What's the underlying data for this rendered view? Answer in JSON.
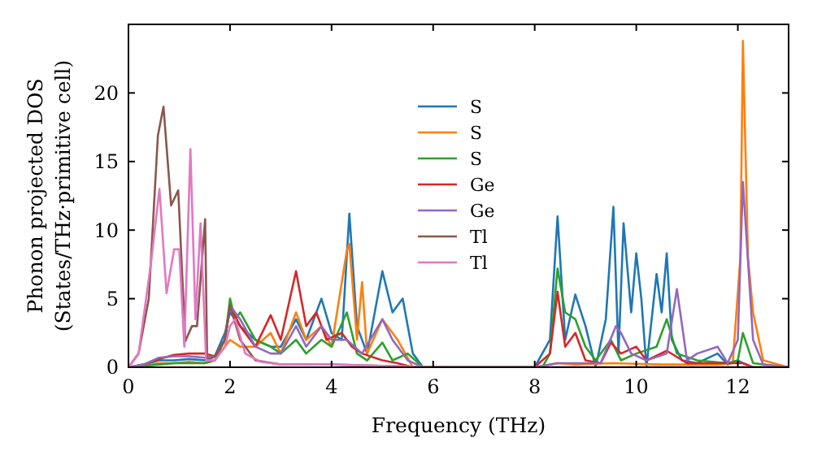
{
  "chart_data": {
    "type": "line",
    "xlabel": "Frequency (THz)",
    "ylabel": "Phonon projected DOS\n(States/THz·primitive cell)",
    "xlim": [
      0,
      13
    ],
    "ylim": [
      0,
      25
    ],
    "xticks": [
      0,
      2,
      4,
      6,
      8,
      10,
      12
    ],
    "yticks": [
      0,
      5,
      10,
      15,
      20
    ],
    "grid": false,
    "legend": "center",
    "marker": "none",
    "line_style": "solid",
    "series": [
      {
        "name": "S",
        "color": "#1f77b4",
        "x": [
          0,
          0.3,
          0.6,
          0.9,
          1.2,
          1.5,
          1.7,
          1.9,
          2.0,
          2.2,
          2.5,
          2.8,
          3.0,
          3.3,
          3.5,
          3.8,
          4.0,
          4.2,
          4.35,
          4.5,
          4.7,
          5.0,
          5.2,
          5.4,
          5.6,
          5.8,
          8.0,
          8.3,
          8.45,
          8.6,
          8.8,
          9.0,
          9.2,
          9.4,
          9.55,
          9.65,
          9.75,
          9.9,
          10.0,
          10.1,
          10.2,
          10.4,
          10.5,
          10.6,
          10.7,
          10.9,
          11.2,
          11.6,
          11.8,
          12.0,
          12.1,
          12.3,
          13
        ],
        "values": [
          0,
          0.2,
          0.5,
          0.5,
          0.6,
          0.5,
          0.8,
          2.5,
          4,
          3,
          2,
          1.5,
          1.5,
          3.5,
          2,
          5,
          2.5,
          2,
          11.2,
          3,
          1,
          7,
          4,
          5,
          1,
          0,
          0,
          2,
          11,
          2,
          5.3,
          3,
          0,
          3.5,
          11.7,
          1,
          10.5,
          4,
          8.3,
          5,
          0,
          6.8,
          4,
          8.3,
          2,
          0.5,
          0.3,
          1,
          0.2,
          0.5,
          0.3,
          0,
          0
        ]
      },
      {
        "name": "S",
        "color": "#ff7f0e",
        "x": [
          0,
          0.3,
          0.6,
          0.9,
          1.2,
          1.5,
          1.7,
          1.9,
          2.0,
          2.2,
          2.5,
          2.8,
          3.0,
          3.3,
          3.5,
          3.8,
          4.0,
          4.3,
          4.35,
          4.5,
          4.6,
          4.7,
          5.0,
          5.3,
          5.6,
          8.0,
          8.45,
          8.8,
          9.5,
          10.5,
          11.6,
          11.9,
          12.05,
          12.1,
          12.2,
          12.3,
          12.5,
          13
        ],
        "values": [
          0,
          0.1,
          0.3,
          0.3,
          0.4,
          0.3,
          0.5,
          1.5,
          2,
          1.5,
          1.5,
          2.5,
          1,
          4,
          2,
          3,
          1.5,
          8.5,
          9,
          2,
          6.2,
          1,
          3.5,
          2,
          0,
          0,
          0.3,
          0.2,
          0.3,
          0.2,
          0.2,
          0.3,
          8,
          23.8,
          8,
          4,
          0.5,
          0
        ]
      },
      {
        "name": "S",
        "color": "#2ca02c",
        "x": [
          0,
          0.3,
          0.6,
          0.9,
          1.2,
          1.5,
          1.7,
          1.9,
          2.0,
          2.1,
          2.2,
          2.5,
          2.8,
          3.0,
          3.3,
          3.5,
          3.8,
          4.0,
          4.3,
          4.5,
          4.7,
          5.0,
          5.2,
          5.5,
          5.8,
          8.15,
          8.3,
          8.45,
          8.6,
          8.8,
          9.0,
          9.2,
          9.5,
          9.7,
          10.0,
          10.4,
          10.6,
          10.8,
          11.2,
          11.8,
          12.0,
          12.1,
          12.3,
          13
        ],
        "values": [
          0,
          0.1,
          0.2,
          0.3,
          0.3,
          0.3,
          0.5,
          2,
          5,
          3.5,
          4,
          2,
          1.5,
          1,
          2,
          1,
          2,
          1.5,
          4,
          1,
          0.5,
          1.8,
          0.5,
          1,
          0,
          0,
          1,
          7.2,
          4,
          3.5,
          1.5,
          0.5,
          2,
          0.5,
          1,
          1.5,
          3.5,
          1,
          0.5,
          0.3,
          0.5,
          2.5,
          0.3,
          0
        ]
      },
      {
        "name": "Ge",
        "color": "#d62728",
        "x": [
          0,
          0.3,
          0.6,
          0.9,
          1.2,
          1.5,
          1.7,
          1.9,
          2.0,
          2.2,
          2.5,
          2.8,
          3.0,
          3.3,
          3.5,
          3.7,
          3.9,
          4.2,
          4.4,
          4.6,
          5.0,
          5.3,
          5.6,
          8.0,
          8.3,
          8.45,
          8.6,
          8.8,
          9.0,
          9.3,
          9.5,
          9.7,
          10.0,
          10.2,
          10.6,
          11.0,
          12.1,
          12.3,
          13
        ],
        "values": [
          0,
          0.2,
          0.6,
          0.9,
          1,
          1,
          0.8,
          2,
          4.5,
          3,
          1.5,
          3.8,
          2,
          7,
          3,
          4,
          2,
          2.5,
          1.5,
          1,
          0.5,
          0.3,
          0,
          0,
          1,
          5.5,
          1.5,
          2.5,
          0.5,
          0.3,
          1.8,
          1,
          1.5,
          0.5,
          1.2,
          0.3,
          0.3,
          0,
          0
        ]
      },
      {
        "name": "Ge",
        "color": "#9467bd",
        "x": [
          0,
          0.3,
          0.6,
          0.9,
          1.2,
          1.5,
          1.7,
          1.9,
          2.0,
          2.2,
          2.5,
          2.8,
          3.0,
          3.3,
          3.5,
          3.8,
          4.0,
          4.3,
          4.6,
          5.0,
          5.2,
          5.5,
          5.8,
          8.0,
          8.45,
          8.8,
          9.3,
          9.6,
          9.7,
          9.9,
          10.2,
          10.6,
          10.8,
          11.0,
          11.2,
          11.6,
          11.8,
          12.0,
          12.1,
          12.3,
          12.5,
          13
        ],
        "values": [
          0,
          0.2,
          0.7,
          0.8,
          0.8,
          0.7,
          0.8,
          2,
          4.5,
          3.5,
          1.5,
          1,
          1,
          3,
          1.5,
          3,
          2,
          2,
          1,
          3.5,
          2,
          0.5,
          0,
          0,
          0.3,
          0.3,
          0.3,
          3,
          2.5,
          1,
          0.5,
          1,
          5.7,
          0.5,
          1,
          1.5,
          0.3,
          2,
          13.5,
          2,
          0.2,
          0
        ]
      },
      {
        "name": "Tl",
        "color": "#8c564b",
        "x": [
          0,
          0.2,
          0.4,
          0.58,
          0.69,
          0.84,
          0.98,
          1.12,
          1.25,
          1.35,
          1.51,
          1.55,
          1.7,
          1.9,
          2.0,
          2.2,
          2.5,
          3.0,
          4.0,
          5.0,
          6.0,
          13
        ],
        "values": [
          0,
          1,
          5,
          16.9,
          19,
          11.8,
          12.9,
          1.9,
          3,
          3,
          10.8,
          0.5,
          0.8,
          2,
          4.5,
          2,
          0.5,
          0.2,
          0.2,
          0.1,
          0,
          0
        ]
      },
      {
        "name": "Tl",
        "color": "#e377c2",
        "x": [
          0,
          0.2,
          0.45,
          0.61,
          0.75,
          0.9,
          1.0,
          1.1,
          1.22,
          1.32,
          1.42,
          1.53,
          1.7,
          1.9,
          2.0,
          2.1,
          2.3,
          2.6,
          3.0,
          4.0,
          5.0,
          6.0,
          13
        ],
        "values": [
          0,
          1,
          7.8,
          13,
          5.4,
          8.6,
          8.6,
          1.5,
          15.9,
          3.5,
          10.5,
          0.5,
          0.5,
          1.5,
          3,
          3.5,
          1,
          0.4,
          0.2,
          0.2,
          0.1,
          0,
          0
        ]
      }
    ]
  }
}
